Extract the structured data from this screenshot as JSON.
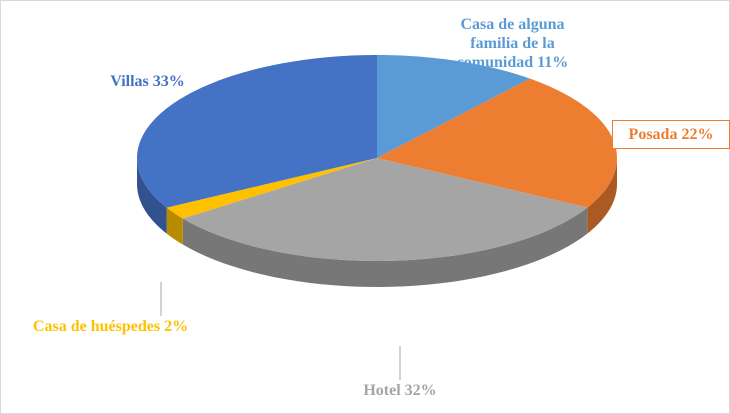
{
  "chart_data": {
    "type": "pie",
    "categories": [
      "Casa de alguna familia de la comunidad",
      "Posada",
      "Hotel",
      "Casa de huéspedes",
      "Villas"
    ],
    "values": [
      11,
      22,
      32,
      2,
      33
    ],
    "value_labels": [
      "11%",
      "22%",
      "32%",
      "2%",
      "33%"
    ],
    "colors": [
      "#5b9bd5",
      "#ed7d31",
      "#a5a5a5",
      "#ffc000",
      "#4472c4"
    ]
  }
}
